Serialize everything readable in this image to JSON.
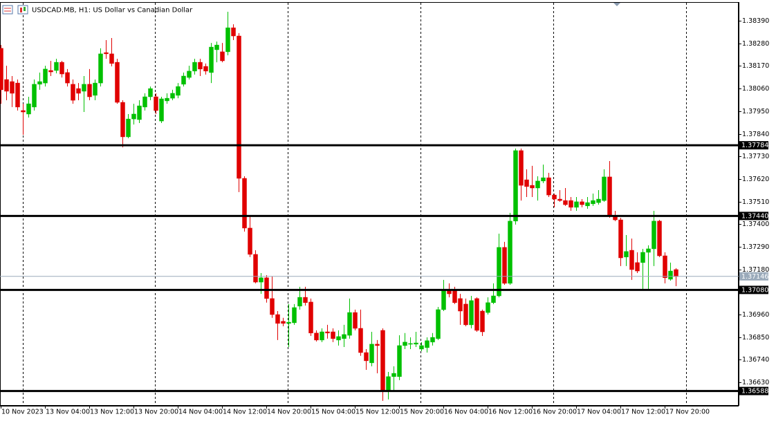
{
  "chart_data": {
    "type": "candlestick",
    "title": "USDCAD.MB, H1:  US Dollar vs Canadian Dollar",
    "up_color": "#00c000",
    "down_color": "#e00000",
    "ylim": [
      1.36516,
      1.38481
    ],
    "yticks": [
      {
        "value": 1.3839,
        "label": "1.38390"
      },
      {
        "value": 1.3828,
        "label": "1.38280"
      },
      {
        "value": 1.3817,
        "label": "1.38170"
      },
      {
        "value": 1.3806,
        "label": "1.38060"
      },
      {
        "value": 1.3795,
        "label": "1.37950"
      },
      {
        "value": 1.3784,
        "label": "1.37840"
      },
      {
        "value": 1.3773,
        "label": "1.37730"
      },
      {
        "value": 1.3762,
        "label": "1.37620"
      },
      {
        "value": 1.3751,
        "label": "1.37510"
      },
      {
        "value": 1.374,
        "label": "1.37400"
      },
      {
        "value": 1.3729,
        "label": "1.37290"
      },
      {
        "value": 1.3718,
        "label": "1.37180"
      },
      {
        "value": 1.3696,
        "label": "1.36960"
      },
      {
        "value": 1.3685,
        "label": "1.36850"
      },
      {
        "value": 1.3674,
        "label": "1.36740"
      },
      {
        "value": 1.3663,
        "label": "1.36630"
      }
    ],
    "levels": [
      1.37784,
      {
        "value": 1.3744,
        "label": "1.37440"
      },
      {
        "value": 1.3708,
        "label": "1.37080"
      },
      1.36588
    ],
    "current_price": 1.37146,
    "categories": [
      "10 Nov 2023",
      null,
      null,
      null,
      null,
      null,
      null,
      null,
      "13 Nov 04:00",
      null,
      null,
      null,
      null,
      null,
      null,
      null,
      "13 Nov 12:00",
      null,
      null,
      null,
      null,
      null,
      null,
      null,
      "13 Nov 20:00",
      null,
      null,
      null,
      null,
      null,
      null,
      null,
      "14 Nov 04:00",
      null,
      null,
      null,
      null,
      null,
      null,
      null,
      "14 Nov 12:00",
      null,
      null,
      null,
      null,
      null,
      null,
      null,
      "14 Nov 20:00",
      null,
      null,
      null,
      null,
      null,
      null,
      null,
      "15 Nov 04:00",
      null,
      null,
      null,
      null,
      null,
      null,
      null,
      "15 Nov 12:00",
      null,
      null,
      null,
      null,
      null,
      null,
      null,
      "15 Nov 20:00",
      null,
      null,
      null,
      null,
      null,
      null,
      null,
      "16 Nov 04:00",
      null,
      null,
      null,
      null,
      null,
      null,
      null,
      "16 Nov 12:00",
      null,
      null,
      null,
      null,
      null,
      null,
      null,
      "16 Nov 20:00",
      null,
      null,
      null,
      null,
      null,
      null,
      null,
      "17 Nov 04:00",
      null,
      null,
      null,
      null,
      null,
      null,
      null,
      "17 Nov 12:00",
      null,
      null,
      null,
      null,
      null,
      null,
      null,
      "17 Nov 20:00",
      null,
      null
    ],
    "open": [
      1.38256,
      1.38104,
      1.38094,
      1.38087,
      1.37953,
      1.37936,
      1.3797,
      1.38081,
      1.38087,
      1.38148,
      1.38148,
      1.38188,
      1.38138,
      1.38081,
      1.3806,
      1.38047,
      1.38081,
      1.38027,
      1.38087,
      1.38235,
      1.38229,
      1.38188,
      1.37993,
      1.37825,
      1.37912,
      1.37909,
      1.3797,
      1.3802,
      1.3802,
      1.37902,
      1.38,
      1.38013,
      1.38027,
      1.38081,
      1.38114,
      1.38145,
      1.38188,
      1.38168,
      1.38138,
      1.38249,
      1.38239,
      1.38239,
      1.38356,
      1.38316,
      1.37623,
      1.37381,
      1.37253,
      1.37118,
      1.37139,
      1.37038,
      1.3696,
      1.36927,
      1.36917,
      1.3692,
      1.37001,
      1.37044,
      1.37021,
      1.3687,
      1.36836,
      1.36876,
      1.36876,
      1.36836,
      1.36843,
      1.36859,
      1.3697,
      1.36893,
      1.36775,
      1.36725,
      1.36816,
      1.36883,
      1.3659,
      1.36658,
      1.36658,
      1.36809,
      1.36816,
      1.36816,
      1.36792,
      1.36799,
      1.36826,
      1.36843,
      1.36984,
      1.37078,
      1.37078,
      1.37038,
      1.37011,
      1.3691,
      1.37038,
      1.36977,
      1.3697,
      1.37018,
      1.37051,
      1.37287,
      1.37112,
      1.37415,
      1.37758,
      1.37616,
      1.37589,
      1.37576,
      1.3761,
      1.37626,
      1.37542,
      1.37522,
      1.37515,
      1.37515,
      1.37482,
      1.37509,
      1.37489,
      1.37499,
      1.37505,
      1.37515,
      1.3763,
      1.37441,
      1.37421,
      1.3724,
      1.37273,
      1.37213,
      1.37213,
      1.37263,
      1.3728,
      1.37415,
      1.37246,
      1.37132,
      1.37179
    ],
    "high": [
      1.38272,
      1.38171,
      1.38121,
      1.38104,
      1.37986,
      1.3802,
      1.38104,
      1.38138,
      1.38171,
      1.38195,
      1.38205,
      1.38195,
      1.38155,
      1.38104,
      1.38087,
      1.38121,
      1.38155,
      1.38104,
      1.38256,
      1.38296,
      1.38306,
      1.38205,
      1.38003,
      1.37936,
      1.37986,
      1.38003,
      1.38037,
      1.3807,
      1.38037,
      1.3802,
      1.38037,
      1.38054,
      1.38087,
      1.38138,
      1.38171,
      1.38205,
      1.38205,
      1.38182,
      1.38282,
      1.38289,
      1.38282,
      1.38434,
      1.38373,
      1.3833,
      1.37633,
      1.37441,
      1.37273,
      1.37162,
      1.37152,
      1.37145,
      1.36977,
      1.36944,
      1.37011,
      1.37011,
      1.37095,
      1.37095,
      1.37038,
      1.36883,
      1.36893,
      1.3691,
      1.36893,
      1.36883,
      1.3691,
      1.37038,
      1.36984,
      1.36984,
      1.36792,
      1.36876,
      1.36836,
      1.36893,
      1.36681,
      1.36708,
      1.36859,
      1.3687,
      1.36849,
      1.36876,
      1.36826,
      1.36849,
      1.3687,
      1.36997,
      1.37129,
      1.37112,
      1.37095,
      1.37061,
      1.37038,
      1.37051,
      1.37044,
      1.36984,
      1.37044,
      1.37112,
      1.37354,
      1.37314,
      1.37455,
      1.37768,
      1.37768,
      1.37667,
      1.37684,
      1.37633,
      1.3769,
      1.3765,
      1.37549,
      1.37566,
      1.37576,
      1.37532,
      1.37532,
      1.37522,
      1.37532,
      1.37549,
      1.37566,
      1.37667,
      1.37707,
      1.37465,
      1.37431,
      1.37347,
      1.3733,
      1.37263,
      1.3728,
      1.37297,
      1.37465,
      1.37421,
      1.37263,
      1.37213,
      1.37186
    ],
    "low": [
      1.37986,
      1.38003,
      1.3797,
      1.37953,
      1.37835,
      1.37919,
      1.37953,
      1.38054,
      1.3807,
      1.38121,
      1.38134,
      1.38114,
      1.3807,
      1.37986,
      1.38003,
      1.37946,
      1.38003,
      1.38003,
      1.3807,
      1.38205,
      1.38168,
      1.37986,
      1.37774,
      1.37818,
      1.37885,
      1.37892,
      1.37953,
      1.38003,
      1.37936,
      1.37892,
      1.37986,
      1.38003,
      1.38013,
      1.3807,
      1.38104,
      1.38128,
      1.38121,
      1.38128,
      1.38087,
      1.38188,
      1.38188,
      1.38222,
      1.38296,
      1.37556,
      1.37364,
      1.3724,
      1.37112,
      1.37061,
      1.37018,
      1.36944,
      1.36836,
      1.36903,
      1.36802,
      1.3691,
      1.36984,
      1.37004,
      1.36856,
      1.36829,
      1.36826,
      1.36843,
      1.36826,
      1.36809,
      1.36802,
      1.36843,
      1.36883,
      1.36759,
      1.36691,
      1.36708,
      1.36674,
      1.3654,
      1.36547,
      1.3659,
      1.36641,
      1.36792,
      1.36792,
      1.36802,
      1.36782,
      1.36775,
      1.36809,
      1.36836,
      1.36977,
      1.37044,
      1.37011,
      1.3691,
      1.36903,
      1.36893,
      1.36876,
      1.36856,
      1.3696,
      1.37011,
      1.37044,
      1.37105,
      1.37105,
      1.37398,
      1.37515,
      1.37532,
      1.37532,
      1.37515,
      1.376,
      1.37532,
      1.37482,
      1.37509,
      1.37489,
      1.37465,
      1.37465,
      1.37482,
      1.37475,
      1.37489,
      1.37495,
      1.37509,
      1.37431,
      1.37415,
      1.37196,
      1.37196,
      1.37129,
      1.37162,
      1.37078,
      1.37078,
      1.37196,
      1.3724,
      1.37112,
      1.37125,
      1.37098
    ],
    "close": [
      1.38054,
      1.38047,
      1.38037,
      1.3797,
      1.37946,
      1.37986,
      1.38081,
      1.38094,
      1.38155,
      1.38141,
      1.38188,
      1.38131,
      1.38087,
      1.38003,
      1.38037,
      1.38081,
      1.3802,
      1.38087,
      1.38229,
      1.38229,
      1.38182,
      1.37993,
      1.37825,
      1.37912,
      1.37936,
      1.37976,
      1.3802,
      1.3806,
      1.37953,
      1.3801,
      1.38013,
      1.38037,
      1.3807,
      1.38121,
      1.38145,
      1.38188,
      1.38155,
      1.38145,
      1.38262,
      1.38272,
      1.38195,
      1.38356,
      1.38316,
      1.37623,
      1.37381,
      1.37253,
      1.37118,
      1.37139,
      1.37038,
      1.3696,
      1.36917,
      1.36917,
      1.36923,
      1.36994,
      1.37044,
      1.37018,
      1.3687,
      1.36836,
      1.36876,
      1.3687,
      1.36843,
      1.36853,
      1.36863,
      1.3697,
      1.36893,
      1.36775,
      1.36735,
      1.36816,
      1.36809,
      1.3659,
      1.36658,
      1.36674,
      1.36809,
      1.36826,
      1.36819,
      1.36822,
      1.36809,
      1.36833,
      1.36849,
      1.36984,
      1.37078,
      1.37061,
      1.37018,
      1.36977,
      1.3691,
      1.37028,
      1.36883,
      1.36876,
      1.37018,
      1.37051,
      1.37287,
      1.37112,
      1.37415,
      1.37758,
      1.37589,
      1.37583,
      1.37576,
      1.3761,
      1.37626,
      1.37542,
      1.37522,
      1.37515,
      1.37495,
      1.37482,
      1.37509,
      1.37495,
      1.37505,
      1.37515,
      1.37522,
      1.3763,
      1.37441,
      1.37421,
      1.37236,
      1.37267,
      1.37179,
      1.37172,
      1.37263,
      1.3728,
      1.37415,
      1.37246,
      1.37139,
      1.37172,
      1.37145
    ]
  }
}
